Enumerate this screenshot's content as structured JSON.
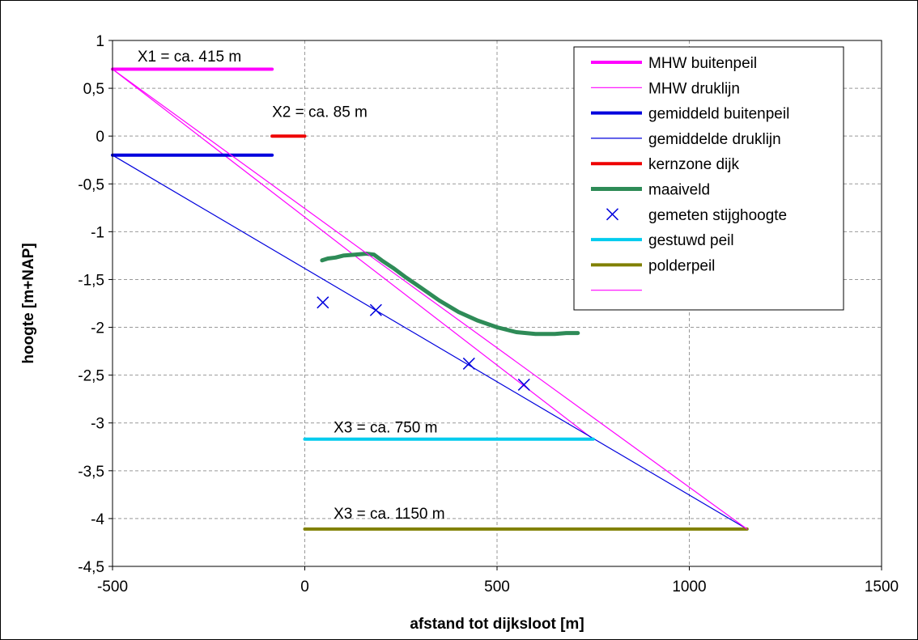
{
  "chart_data": {
    "type": "line",
    "xlabel": "afstand tot dijksloot [m]",
    "ylabel": "hoogte [m+NAP]",
    "xlim": [
      -500,
      1500
    ],
    "ylim": [
      -4.5,
      1
    ],
    "xticks": [
      -500,
      0,
      500,
      1000,
      1500
    ],
    "yticks": [
      1,
      0.5,
      0,
      -0.5,
      -1,
      -1.5,
      -2,
      -2.5,
      -3,
      -3.5,
      -4,
      -4.5
    ],
    "xtick_labels": [
      "-500",
      "0",
      "500",
      "1000",
      "1500"
    ],
    "ytick_labels": [
      "1",
      "0,5",
      "0",
      "-0,5",
      "-1",
      "-1,5",
      "-2",
      "-2,5",
      "-3",
      "-3,5",
      "-4",
      "-4,5"
    ],
    "grid": true,
    "legend_position": "top-right",
    "series": [
      {
        "name": "MHW buitenpeil",
        "kind": "line",
        "color": "#ff00ff",
        "width": 4,
        "x": [
          -500,
          -85
        ],
        "y": [
          0.7,
          0.7
        ]
      },
      {
        "name": "MHW druklijn",
        "kind": "line",
        "color": "#ff00ff",
        "width": 1.2,
        "x": [
          -500,
          750
        ],
        "y": [
          0.7,
          -3.17
        ]
      },
      {
        "name": "gemiddeld buitenpeil",
        "kind": "line",
        "color": "#0000dd",
        "width": 4,
        "x": [
          -500,
          -85
        ],
        "y": [
          -0.2,
          -0.2
        ]
      },
      {
        "name": "gemiddelde druklijn",
        "kind": "line",
        "color": "#0000dd",
        "width": 1.2,
        "x": [
          -500,
          1150
        ],
        "y": [
          -0.2,
          -4.11
        ]
      },
      {
        "name": "kernzone dijk",
        "kind": "line",
        "color": "#ee0000",
        "width": 4,
        "x": [
          -85,
          0
        ],
        "y": [
          0,
          0
        ]
      },
      {
        "name": "maaiveld",
        "kind": "line",
        "color": "#2e8b57",
        "width": 5,
        "x": [
          45,
          60,
          80,
          100,
          130,
          160,
          180,
          200,
          230,
          260,
          300,
          350,
          400,
          450,
          500,
          550,
          600,
          650,
          680,
          710
        ],
        "y": [
          -1.3,
          -1.28,
          -1.27,
          -1.25,
          -1.24,
          -1.23,
          -1.24,
          -1.3,
          -1.38,
          -1.47,
          -1.58,
          -1.72,
          -1.84,
          -1.93,
          -2.0,
          -2.05,
          -2.07,
          -2.07,
          -2.06,
          -2.06
        ]
      },
      {
        "name": "gemeten stijghoogte",
        "kind": "marker",
        "color": "#0000dd",
        "x": [
          47,
          185,
          427,
          570
        ],
        "y": [
          -1.74,
          -1.82,
          -2.38,
          -2.6
        ]
      },
      {
        "name": "gestuwd peil",
        "kind": "line",
        "color": "#00ccee",
        "width": 4,
        "x": [
          0,
          750
        ],
        "y": [
          -3.17,
          -3.17
        ]
      },
      {
        "name": "polderpeil",
        "kind": "line",
        "color": "#808000",
        "width": 4,
        "x": [
          0,
          1150
        ],
        "y": [
          -4.11,
          -4.11
        ]
      },
      {
        "name": "",
        "kind": "line",
        "color": "#ff00ff",
        "width": 1.2,
        "x": [
          -500,
          1150
        ],
        "y": [
          0.7,
          -4.11
        ]
      }
    ],
    "annotations": [
      {
        "text": "X1 = ca. 415 m",
        "x": -435,
        "y": 0.78
      },
      {
        "text": "X2 = ca. 85 m",
        "x": -85,
        "y": 0.2
      },
      {
        "text": "X3 = ca. 750 m",
        "x": 75,
        "y": -3.1
      },
      {
        "text": "X3 = ca. 1150 m",
        "x": 75,
        "y": -4.0
      }
    ]
  }
}
